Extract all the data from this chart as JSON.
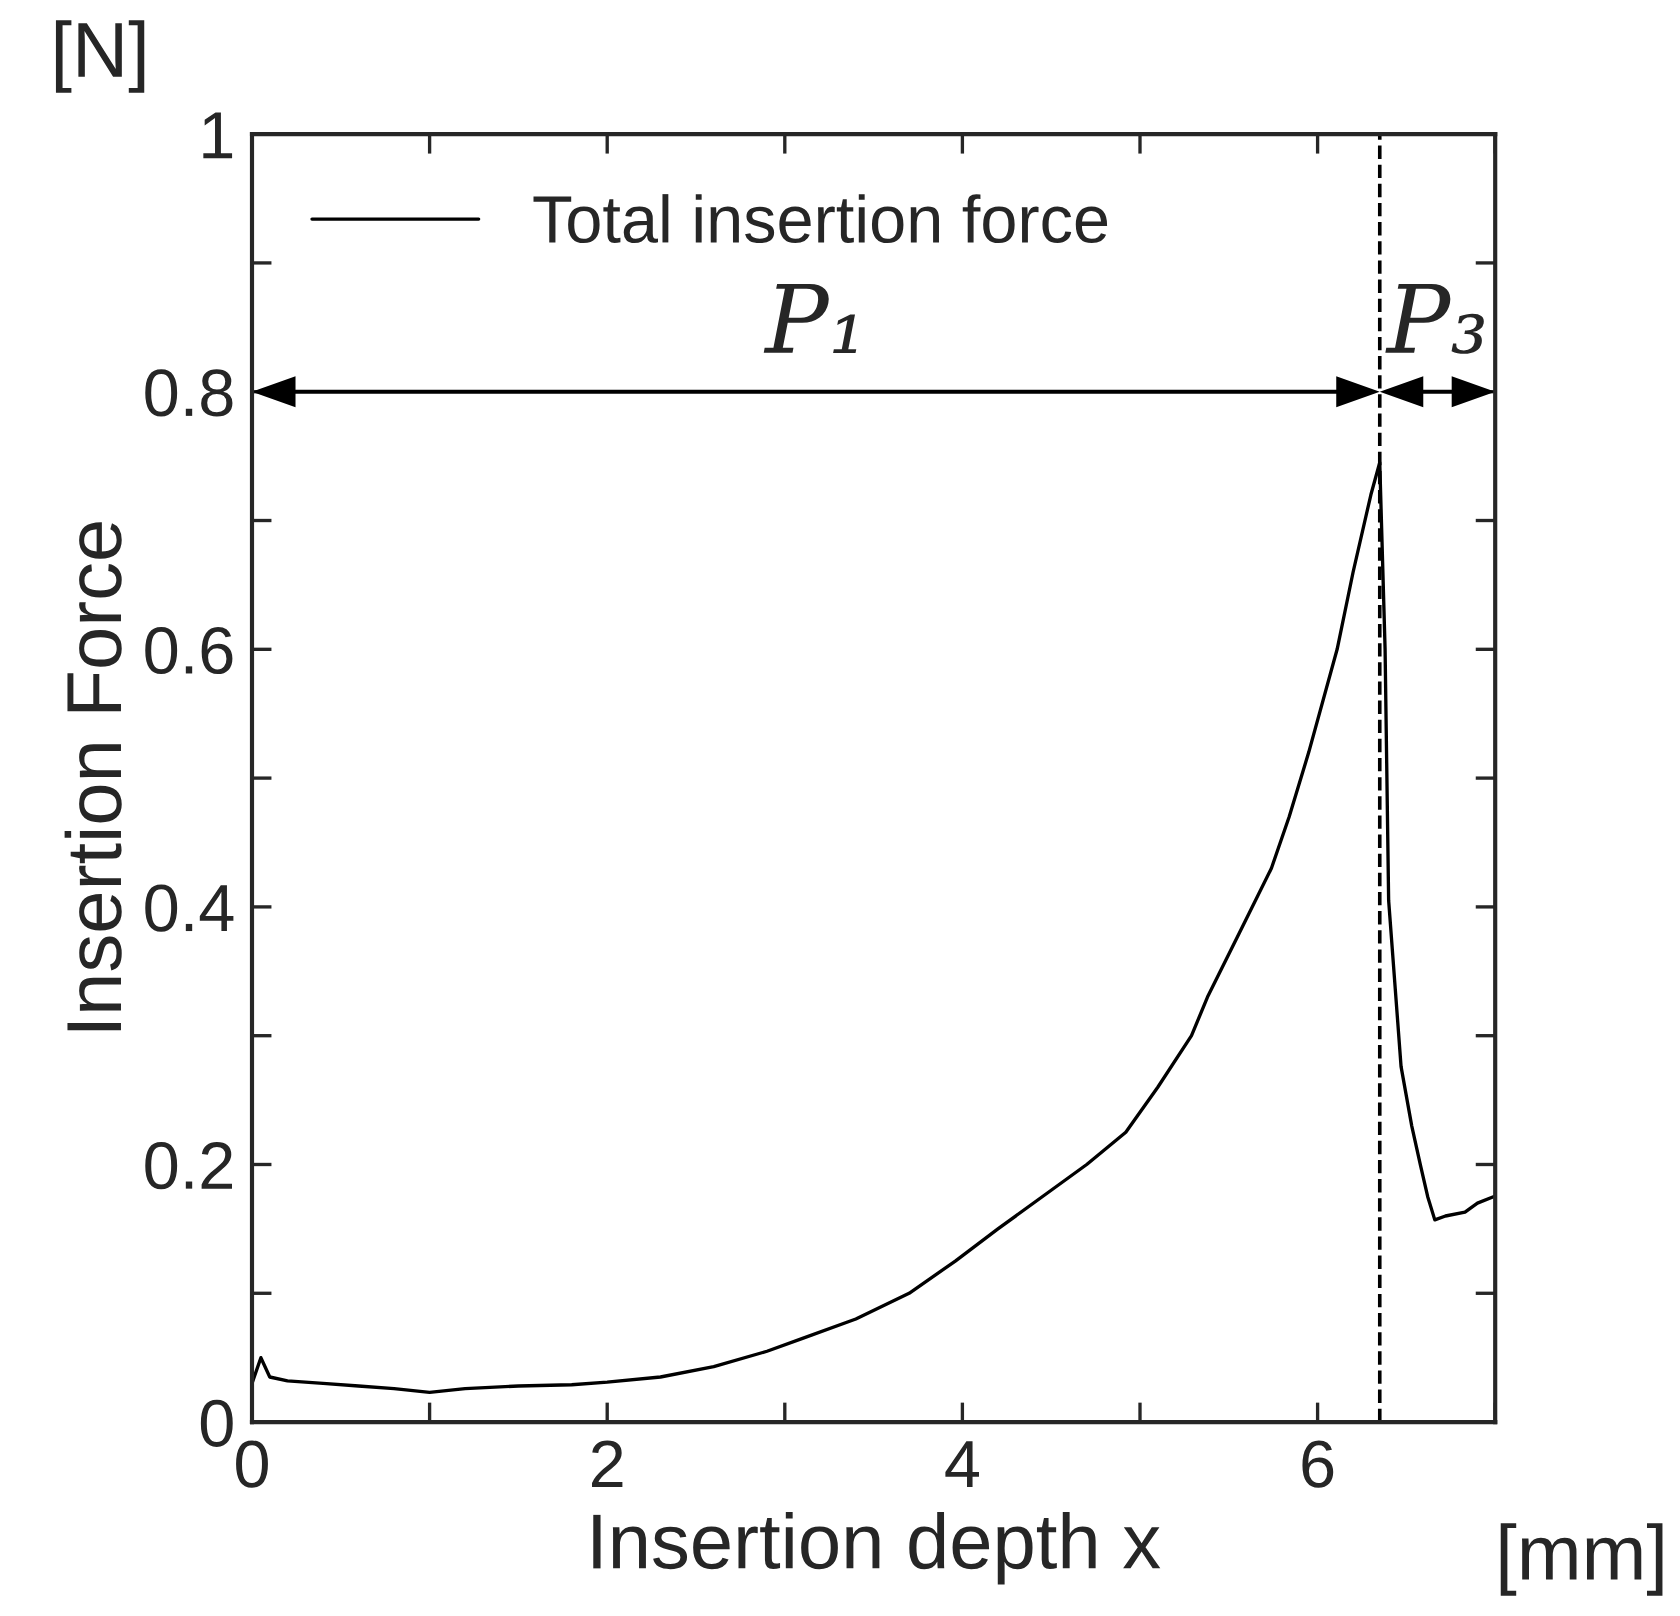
{
  "chart_data": {
    "type": "line",
    "xlabel": "Insertion depth x",
    "ylabel": "Insertion Force",
    "xlim": [
      0,
      7
    ],
    "ylim": [
      0,
      1
    ],
    "xticks": [
      0,
      {
        "value": 1,
        "label": null
      },
      2,
      {
        "value": 3,
        "label": null
      },
      4,
      {
        "value": 5,
        "label": null
      },
      6,
      {
        "value": 7,
        "label": null
      }
    ],
    "yticks": [
      0,
      {
        "value": 0.1,
        "label": null
      },
      0.2,
      {
        "value": 0.3,
        "label": null
      },
      0.4,
      {
        "value": 0.5,
        "label": null
      },
      0.6,
      {
        "value": 0.7,
        "label": null
      },
      0.8,
      {
        "value": 0.9,
        "label": null
      },
      1
    ],
    "grid": false,
    "legend": "top left",
    "marker": "none",
    "line_style": "solid",
    "series": [
      {
        "name": "Total insertion force",
        "color": "#000000",
        "x": [
          0,
          0.05,
          0.1,
          0.2,
          0.4,
          0.6,
          0.8,
          1.0,
          1.2,
          1.5,
          1.8,
          2.0,
          2.3,
          2.6,
          2.9,
          3.1,
          3.4,
          3.7,
          3.96,
          4.2,
          4.5,
          4.7,
          4.92,
          5.1,
          5.29,
          5.38,
          5.56,
          5.74,
          5.84,
          5.95,
          6.11,
          6.2,
          6.3,
          6.35,
          6.38,
          6.4,
          6.47,
          6.53,
          6.58,
          6.62,
          6.66,
          6.72,
          6.83,
          6.9,
          6.99
        ],
        "values": [
          0.03,
          0.05,
          0.035,
          0.032,
          0.03,
          0.028,
          0.026,
          0.023,
          0.026,
          0.028,
          0.029,
          0.031,
          0.035,
          0.043,
          0.055,
          0.065,
          0.08,
          0.1,
          0.125,
          0.15,
          0.18,
          0.2,
          0.225,
          0.26,
          0.3,
          0.33,
          0.38,
          0.43,
          0.47,
          0.52,
          0.6,
          0.66,
          0.72,
          0.745,
          0.6,
          0.405,
          0.276,
          0.23,
          0.199,
          0.175,
          0.157,
          0.16,
          0.163,
          0.17,
          0.175
        ]
      }
    ],
    "ref_lines": [
      {
        "axis": "x",
        "value": 6.35,
        "color": "#000000",
        "line_style": "dashed"
      }
    ],
    "annotations": [
      "P₁",
      "P₃",
      "[N]",
      "[mm]"
    ]
  }
}
